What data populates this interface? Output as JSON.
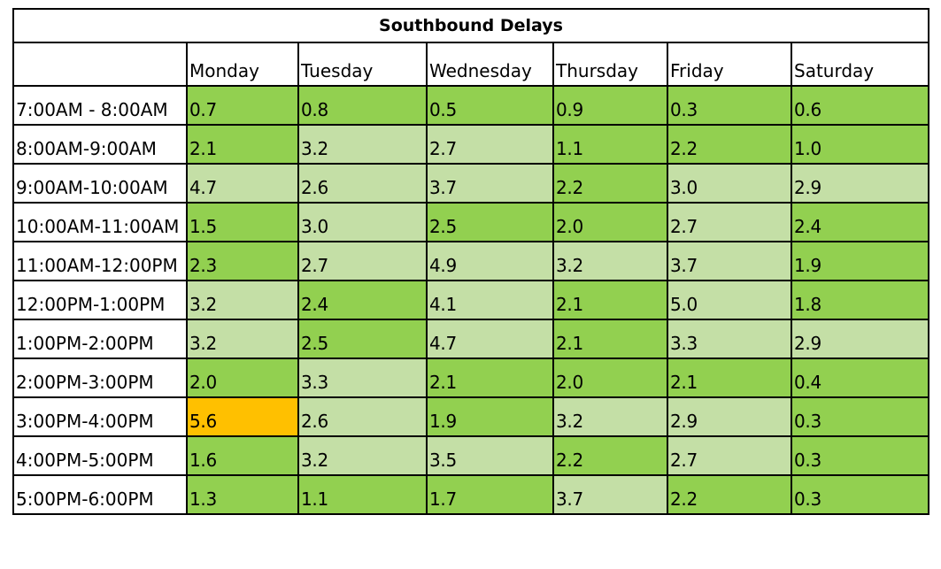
{
  "title": "Southbound Delays",
  "days": [
    "Monday",
    "Tuesday",
    "Wednesday",
    "Thursday",
    "Friday",
    "Saturday"
  ],
  "colors": {
    "bright": "#92d050",
    "light": "#c4dfa6",
    "orange": "#ffc000"
  },
  "rows": [
    {
      "time": "7:00AM - 8:00AM",
      "values": [
        "0.7",
        "0.8",
        "0.5",
        "0.9",
        "0.3",
        "0.6"
      ],
      "shades": [
        "bright",
        "bright",
        "bright",
        "bright",
        "bright",
        "bright"
      ]
    },
    {
      "time": "8:00AM-9:00AM",
      "values": [
        "2.1",
        "3.2",
        "2.7",
        "1.1",
        "2.2",
        "1.0"
      ],
      "shades": [
        "bright",
        "light",
        "light",
        "bright",
        "bright",
        "bright"
      ]
    },
    {
      "time": "9:00AM-10:00AM",
      "values": [
        "4.7",
        "2.6",
        "3.7",
        "2.2",
        "3.0",
        "2.9"
      ],
      "shades": [
        "light",
        "light",
        "light",
        "bright",
        "light",
        "light"
      ]
    },
    {
      "time": "10:00AM-11:00AM",
      "values": [
        "1.5",
        "3.0",
        "2.5",
        "2.0",
        "2.7",
        "2.4"
      ],
      "shades": [
        "bright",
        "light",
        "bright",
        "bright",
        "light",
        "bright"
      ]
    },
    {
      "time": "11:00AM-12:00PM",
      "values": [
        "2.3",
        "2.7",
        "4.9",
        "3.2",
        "3.7",
        "1.9"
      ],
      "shades": [
        "bright",
        "light",
        "light",
        "light",
        "light",
        "bright"
      ]
    },
    {
      "time": "12:00PM-1:00PM",
      "values": [
        "3.2",
        "2.4",
        "4.1",
        "2.1",
        "5.0",
        "1.8"
      ],
      "shades": [
        "light",
        "bright",
        "light",
        "bright",
        "light",
        "bright"
      ]
    },
    {
      "time": "1:00PM-2:00PM",
      "values": [
        "3.2",
        "2.5",
        "4.7",
        "2.1",
        "3.3",
        "2.9"
      ],
      "shades": [
        "light",
        "bright",
        "light",
        "bright",
        "light",
        "light"
      ]
    },
    {
      "time": "2:00PM-3:00PM",
      "values": [
        "2.0",
        "3.3",
        "2.1",
        "2.0",
        "2.1",
        "0.4"
      ],
      "shades": [
        "bright",
        "light",
        "bright",
        "bright",
        "bright",
        "bright"
      ]
    },
    {
      "time": "3:00PM-4:00PM",
      "values": [
        "5.6",
        "2.6",
        "1.9",
        "3.2",
        "2.9",
        "0.3"
      ],
      "shades": [
        "orange",
        "light",
        "bright",
        "light",
        "light",
        "bright"
      ]
    },
    {
      "time": "4:00PM-5:00PM",
      "values": [
        "1.6",
        "3.2",
        "3.5",
        "2.2",
        "2.7",
        "0.3"
      ],
      "shades": [
        "bright",
        "light",
        "light",
        "bright",
        "light",
        "bright"
      ]
    },
    {
      "time": "5:00PM-6:00PM",
      "values": [
        "1.3",
        "1.1",
        "1.7",
        "3.7",
        "2.2",
        "0.3"
      ],
      "shades": [
        "bright",
        "bright",
        "bright",
        "light",
        "bright",
        "bright"
      ]
    }
  ]
}
